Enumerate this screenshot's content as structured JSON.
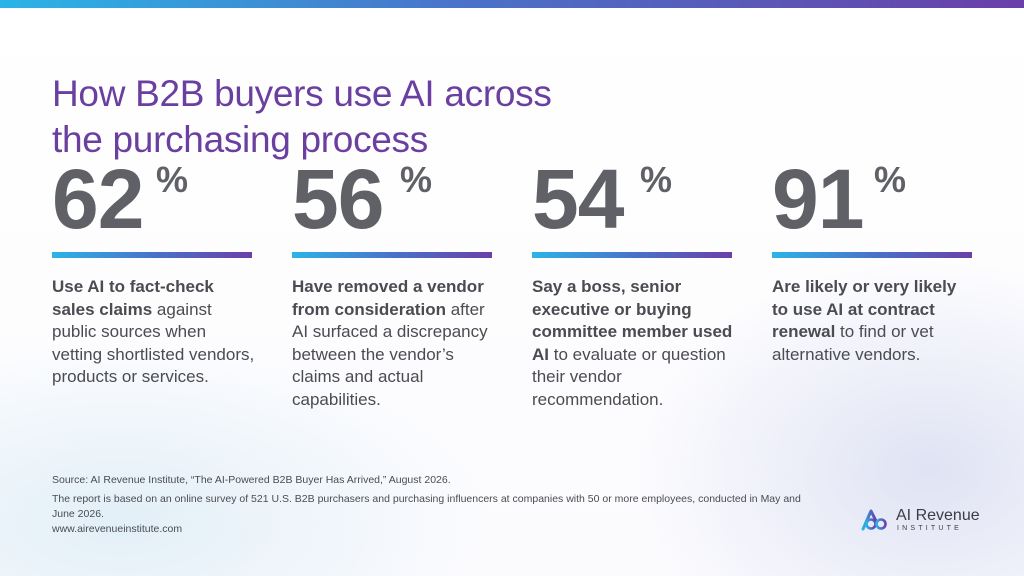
{
  "title": {
    "line1": "How B2B buyers use AI across",
    "line2": "the purchasing process"
  },
  "stats": [
    {
      "value": "62",
      "unit": "%",
      "bold": "Use AI to fact-check sales claims",
      "rest": " against public sources when vetting shortlisted vendors, products or services."
    },
    {
      "value": "56",
      "unit": "%",
      "bold": "Have removed a vendor from consideration",
      "rest": " after AI surfaced a discrepancy between the vendor’s claims and actual capabilities."
    },
    {
      "value": "54",
      "unit": "%",
      "bold": "Say a boss, senior executive or buying committee member used AI",
      "rest": " to evaluate or question their vendor recommendation."
    },
    {
      "value": "91",
      "unit": "%",
      "bold": "Are likely or very likely to use AI at contract renewal",
      "rest": " to find or vet alternative vendors."
    }
  ],
  "footer": {
    "source": "Source: AI Revenue Institute, “The AI-Powered B2B Buyer Has Arrived,” August 2026.",
    "note": "The report is based on an online survey of 521 U.S. B2B purchasers and purchasing influencers at companies with 50 or more employees, conducted in May and June 2026.",
    "url": "www.airevenueinstitute.com"
  },
  "logo": {
    "name": "AI Revenue",
    "sub": "INSTITUTE",
    "icon": "ai-revenue-logo-icon"
  },
  "colors": {
    "title": "#6a3fa0",
    "numbers": "#5f6167",
    "text": "#4a4c52",
    "gradient_start": "#2bb4e6",
    "gradient_end": "#6a3fa8"
  }
}
